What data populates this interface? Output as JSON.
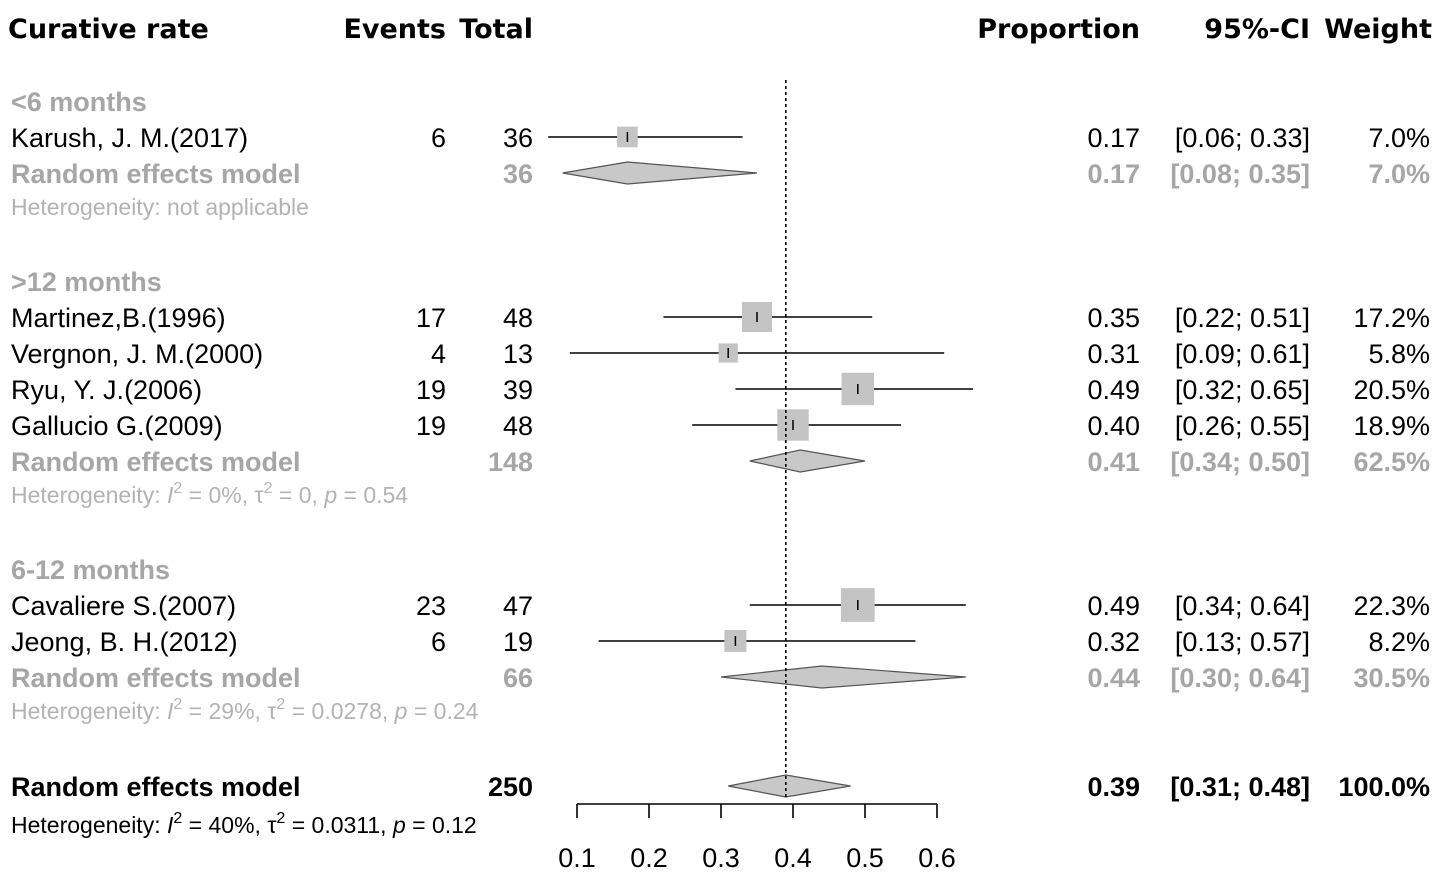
{
  "headers": {
    "outcome": "Curative rate",
    "events": "Events",
    "total": "Total",
    "proportion": "Proportion",
    "ci": "95%-CI",
    "weight": "Weight"
  },
  "colors": {
    "study_text": "#000000",
    "subgroup_text": "#a6a6a6",
    "heterogeneity_text": "#b3b3b3",
    "square_fill": "#c4c4c4",
    "diamond_fill": "#c8c8c8",
    "reference_line": "#000000"
  },
  "chart_data": {
    "type": "forest",
    "effect_measure": "Proportion",
    "reference_value": 0.39,
    "x_axis": {
      "min": 0.1,
      "max": 0.6,
      "ticks": [
        "0.1",
        "0.2",
        "0.3",
        "0.4",
        "0.5",
        "0.6"
      ]
    },
    "subgroups": [
      {
        "label": "<6 months",
        "studies": [
          {
            "study": "Karush, J. M.(2017)",
            "events": "6",
            "total": "36",
            "est": 0.17,
            "lo": 0.06,
            "hi": 0.33,
            "prop": "0.17",
            "ci": "[0.06; 0.33]",
            "weight": "7.0%",
            "w": 7.0
          }
        ],
        "pooled": {
          "label": "Random effects model",
          "total": "36",
          "est": 0.17,
          "lo": 0.08,
          "hi": 0.35,
          "prop": "0.17",
          "ci": "[0.08; 0.35]",
          "weight": "7.0%"
        },
        "heterogeneity": {
          "plain": "Heterogeneity: not applicable"
        }
      },
      {
        "label": ">12 months",
        "studies": [
          {
            "study": "Martinez,B.(1996)",
            "events": "17",
            "total": "48",
            "est": 0.35,
            "lo": 0.22,
            "hi": 0.51,
            "prop": "0.35",
            "ci": "[0.22; 0.51]",
            "weight": "17.2%",
            "w": 17.2
          },
          {
            "study": "Vergnon, J. M.(2000)",
            "events": "4",
            "total": "13",
            "est": 0.31,
            "lo": 0.09,
            "hi": 0.61,
            "prop": "0.31",
            "ci": "[0.09; 0.61]",
            "weight": "5.8%",
            "w": 5.8
          },
          {
            "study": "Ryu, Y. J.(2006)",
            "events": "19",
            "total": "39",
            "est": 0.49,
            "lo": 0.32,
            "hi": 0.65,
            "prop": "0.49",
            "ci": "[0.32; 0.65]",
            "weight": "20.5%",
            "w": 20.5
          },
          {
            "study": "Gallucio G.(2009)",
            "events": "19",
            "total": "48",
            "est": 0.4,
            "lo": 0.26,
            "hi": 0.55,
            "prop": "0.40",
            "ci": "[0.26; 0.55]",
            "weight": "18.9%",
            "w": 18.9
          }
        ],
        "pooled": {
          "label": "Random effects model",
          "total": "148",
          "est": 0.41,
          "lo": 0.34,
          "hi": 0.5,
          "prop": "0.41",
          "ci": "[0.34; 0.50]",
          "weight": "62.5%"
        },
        "heterogeneity": {
          "prefix": "Heterogeneity: ",
          "I2": "0%",
          "tau2": "0",
          "p": "0.54"
        }
      },
      {
        "label": "6-12 months",
        "studies": [
          {
            "study": "Cavaliere S.(2007)",
            "events": "23",
            "total": "47",
            "est": 0.49,
            "lo": 0.34,
            "hi": 0.64,
            "prop": "0.49",
            "ci": "[0.34; 0.64]",
            "weight": "22.3%",
            "w": 22.3
          },
          {
            "study": "Jeong, B. H.(2012)",
            "events": "6",
            "total": "19",
            "est": 0.32,
            "lo": 0.13,
            "hi": 0.57,
            "prop": "0.32",
            "ci": "[0.13; 0.57]",
            "weight": "8.2%",
            "w": 8.2
          }
        ],
        "pooled": {
          "label": "Random effects model",
          "total": "66",
          "est": 0.44,
          "lo": 0.3,
          "hi": 0.64,
          "prop": "0.44",
          "ci": "[0.30; 0.64]",
          "weight": "30.5%"
        },
        "heterogeneity": {
          "prefix": "Heterogeneity: ",
          "I2": "29%",
          "tau2": "0.0278",
          "p": "0.24"
        }
      }
    ],
    "overall": {
      "label": "Random effects model",
      "total": "250",
      "est": 0.39,
      "lo": 0.31,
      "hi": 0.48,
      "prop": "0.39",
      "ci": "[0.31; 0.48]",
      "weight": "100.0%",
      "heterogeneity": {
        "prefix": "Heterogeneity: ",
        "I2": "40%",
        "tau2": "0.0311",
        "p": "0.12"
      }
    }
  }
}
